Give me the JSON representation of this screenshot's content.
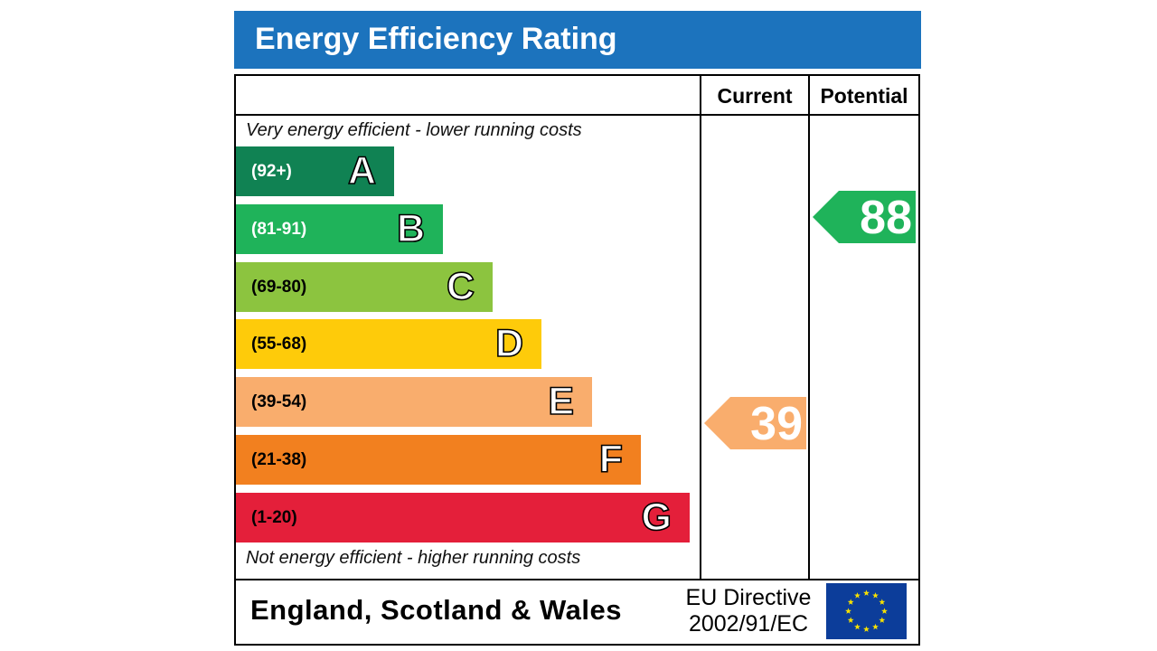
{
  "title": "Energy Efficiency Rating",
  "columns": {
    "current": "Current",
    "potential": "Potential"
  },
  "top_note": "Very energy efficient - lower running costs",
  "bottom_note": "Not energy efficient - higher running costs",
  "bands": [
    {
      "letter": "A",
      "range": "(92+)",
      "color": "#108253",
      "range_color": "#ffffff"
    },
    {
      "letter": "B",
      "range": "(81-91)",
      "color": "#1fb35a",
      "range_color": "#ffffff"
    },
    {
      "letter": "C",
      "range": "(69-80)",
      "color": "#8cc43f",
      "range_color": "#000000"
    },
    {
      "letter": "D",
      "range": "(55-68)",
      "color": "#fecb0a",
      "range_color": "#000000"
    },
    {
      "letter": "E",
      "range": "(39-54)",
      "color": "#f9ad6d",
      "range_color": "#000000"
    },
    {
      "letter": "F",
      "range": "(21-38)",
      "color": "#f2801f",
      "range_color": "#000000"
    },
    {
      "letter": "G",
      "range": "(1-20)",
      "color": "#e41f3a",
      "range_color": "#000000"
    }
  ],
  "current_rating": {
    "value": "39",
    "band": "E",
    "color": "#f9ad6d"
  },
  "potential_rating": {
    "value": "88",
    "band": "B",
    "color": "#1fb35a"
  },
  "footer": {
    "country": "England, Scotland & Wales",
    "directive_line1": "EU Directive",
    "directive_line2": "2002/91/EC",
    "flag_color": "#0c3d9a",
    "star_color": "#f7e100"
  }
}
